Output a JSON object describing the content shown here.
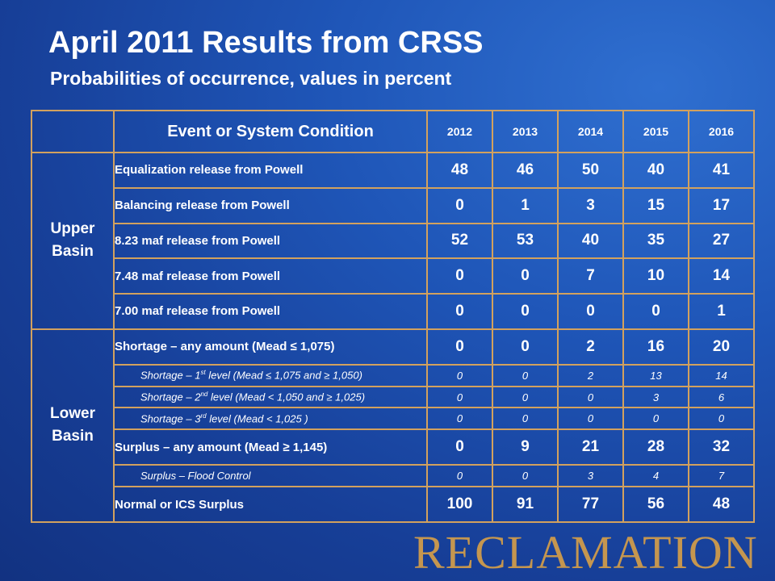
{
  "title": "April 2011 Results from CRSS",
  "subtitle": "Probabilities of occurrence, values in percent",
  "table": {
    "header": {
      "event_col": "Event or System Condition",
      "years": [
        "2012",
        "2013",
        "2014",
        "2015",
        "2016"
      ]
    },
    "groups": [
      {
        "label_lines": [
          "Upper",
          "Basin"
        ],
        "rows": [
          {
            "label": "Equalization release from Powell",
            "values": [
              "48",
              "46",
              "50",
              "40",
              "41"
            ],
            "sub": false
          },
          {
            "label": "Balancing release from Powell",
            "values": [
              "0",
              "1",
              "3",
              "15",
              "17"
            ],
            "sub": false
          },
          {
            "label": "8.23 maf release from Powell",
            "values": [
              "52",
              "53",
              "40",
              "35",
              "27"
            ],
            "sub": false
          },
          {
            "label": "7.48 maf release from Powell",
            "values": [
              "0",
              "0",
              "7",
              "10",
              "14"
            ],
            "sub": false
          },
          {
            "label": "7.00 maf release from Powell",
            "values": [
              "0",
              "0",
              "0",
              "0",
              "1"
            ],
            "sub": false
          }
        ]
      },
      {
        "label_lines": [
          "Lower",
          "Basin"
        ],
        "rows": [
          {
            "label": "Shortage – any amount (Mead ≤ 1,075)",
            "values": [
              "0",
              "0",
              "2",
              "16",
              "20"
            ],
            "sub": false
          },
          {
            "label_pre": "Shortage – 1",
            "label_sup": "st",
            "label_post": " level (Mead ≤ 1,075 and ≥ 1,050)",
            "values": [
              "0",
              "0",
              "2",
              "13",
              "14"
            ],
            "sub": true
          },
          {
            "label_pre": "Shortage – 2",
            "label_sup": "nd",
            "label_post": " level (Mead < 1,050 and ≥ 1,025)",
            "values": [
              "0",
              "0",
              "0",
              "3",
              "6"
            ],
            "sub": true
          },
          {
            "label_pre": "Shortage – 3",
            "label_sup": "rd",
            "label_post": " level (Mead < 1,025 )",
            "values": [
              "0",
              "0",
              "0",
              "0",
              "0"
            ],
            "sub": true
          },
          {
            "label": "Surplus – any amount (Mead ≥ 1,145)",
            "values": [
              "0",
              "9",
              "21",
              "28",
              "32"
            ],
            "sub": false
          },
          {
            "label": "Surplus – Flood Control",
            "values": [
              "0",
              "0",
              "3",
              "4",
              "7"
            ],
            "sub": true
          },
          {
            "label": "Normal or ICS Surplus",
            "values": [
              "100",
              "91",
              "77",
              "56",
              "48"
            ],
            "sub": false
          }
        ]
      }
    ]
  },
  "logo_text": "RECLAMATION",
  "colors": {
    "background": "#1f56b8",
    "table_border": "#d2a15e",
    "logo": "#c5964f",
    "text": "#ffffff"
  }
}
